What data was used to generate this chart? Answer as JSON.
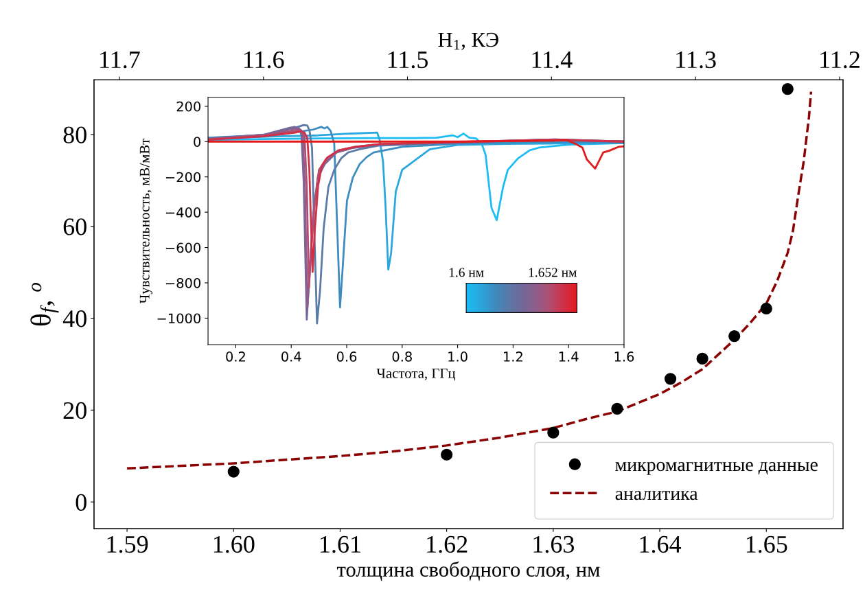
{
  "chart_data": [
    {
      "type": "scatter",
      "xlabel": "толщина свободного слоя, нм",
      "ylabel": "θ$_{f}$, $^{o}$",
      "x2label": "H$_{1}$, КЭ",
      "xlim": [
        1.5869,
        1.6572
      ],
      "xticks": [
        1.59,
        {
          "value": 1.6,
          "label": "1.60"
        },
        1.61,
        1.62,
        1.63,
        1.64,
        1.65
      ],
      "x2lim": [
        11.7176,
        11.1976
      ],
      "x2ticks": [
        11.7,
        11.6,
        11.5,
        11.4,
        11.3,
        11.2
      ],
      "ylim": [
        -5.8,
        91.9
      ],
      "yticks": [
        0,
        20,
        40,
        60,
        80
      ],
      "grid": false,
      "legend": "bottom right",
      "series": [
        {
          "name": "микромагнитные данные",
          "type": "scatter",
          "marker": "circle",
          "color": "#000000",
          "x": [
            1.6,
            1.62,
            1.63,
            1.636,
            1.641,
            1.644,
            1.647,
            1.65,
            1.652
          ],
          "values": [
            6.6,
            10.3,
            15.1,
            20.3,
            26.8,
            31.2,
            36.1,
            42.1,
            89.9
          ]
        },
        {
          "name": "аналитика",
          "type": "line",
          "line_style": "dashed",
          "color": "#8b0000",
          "x": [
            1.59,
            1.6,
            1.61,
            1.615,
            1.62,
            1.625,
            1.63,
            1.633,
            1.636,
            1.64,
            1.642,
            1.644,
            1.647,
            1.6485,
            1.65,
            1.651,
            1.652,
            1.6525,
            1.653,
            1.6535,
            1.654,
            1.6542
          ],
          "values": [
            7.3,
            8.4,
            10.0,
            11.0,
            12.3,
            14.0,
            16.1,
            18.0,
            19.7,
            23.5,
            26.0,
            28.9,
            35.3,
            39.0,
            43.2,
            48.0,
            54.2,
            59.0,
            66.8,
            74.0,
            83.7,
            89.3
          ]
        }
      ]
    },
    {
      "type": "line",
      "xlabel": "Частота, ГГц",
      "ylabel": "Чувствительность, мВ/мВт",
      "xlim": [
        0.1,
        1.6
      ],
      "xticks": [
        0.2,
        0.4,
        0.6,
        0.8,
        {
          "value": 1,
          "label": "1.0"
        },
        1.2,
        1.4,
        1.6
      ],
      "ylim": [
        -1150,
        250
      ],
      "yticks": [
        200,
        0,
        {
          "value": -200,
          "label": "−200"
        },
        {
          "value": -400,
          "label": "−400"
        },
        {
          "value": -600,
          "label": "−600"
        },
        {
          "value": -800,
          "label": "−800"
        },
        {
          "value": -1000,
          "label": "−1000"
        }
      ],
      "grid": false,
      "annotations": [
        "1.6 нм",
        "1.652 нм"
      ],
      "series": [
        {
          "color": "#1cbcf5",
          "x": [
            0.1,
            0.3,
            0.5,
            0.7,
            0.85,
            0.924,
            0.983,
            1.0,
            1.021,
            1.042,
            1.067,
            1.088,
            1.101,
            1.122,
            1.141,
            1.164,
            1.181,
            1.218,
            1.26,
            1.294,
            1.345,
            1.403,
            1.6
          ],
          "values": [
            9,
            14,
            18,
            20,
            20,
            22,
            35,
            25,
            45,
            22,
            18,
            -17,
            -75,
            -374,
            -445,
            -257,
            -160,
            -95,
            -49,
            -34,
            -26,
            -17,
            -8
          ]
        },
        {
          "color": "#2aa8de",
          "x": [
            0.1,
            0.328,
            0.496,
            0.597,
            0.71,
            0.719,
            0.731,
            0.74,
            0.75,
            0.76,
            0.777,
            0.8,
            0.9,
            1.0,
            1.176,
            1.43,
            1.6
          ],
          "values": [
            16,
            29,
            35,
            44,
            51,
            9,
            -114,
            -361,
            -725,
            -634,
            -283,
            -160,
            -43,
            -19,
            -13,
            -10,
            -8
          ]
        },
        {
          "color": "#3d8cc0",
          "x": [
            0.1,
            0.37,
            0.479,
            0.508,
            0.52,
            0.53,
            0.542,
            0.555,
            0.563,
            0.576,
            0.584,
            0.601,
            0.622,
            0.647,
            0.672,
            0.697,
            0.8,
            1.0,
            1.3,
            1.6
          ],
          "values": [
            22,
            42,
            68,
            83,
            75,
            83,
            61,
            -10,
            -361,
            -939,
            -751,
            -335,
            -205,
            -127,
            -88,
            -62,
            -30,
            -12,
            -2,
            -5
          ]
        },
        {
          "color": "#5a7aa8",
          "x": [
            0.1,
            0.328,
            0.412,
            0.445,
            0.458,
            0.466,
            0.475,
            0.483,
            0.493,
            0.504,
            0.517,
            0.534,
            0.555,
            0.58,
            0.605,
            0.647,
            0.714,
            1.0,
            1.3,
            1.6
          ],
          "values": [
            16,
            42,
            77,
            94,
            91,
            61,
            -36,
            -491,
            -1030,
            -842,
            -491,
            -257,
            -160,
            -95,
            -62,
            -43,
            -23,
            -6,
            10,
            0
          ]
        },
        {
          "color": "#72689a",
          "x": [
            0.1,
            0.3,
            0.395,
            0.412,
            0.429,
            0.437,
            0.445,
            0.456,
            0.466,
            0.479,
            0.496,
            0.521,
            0.563,
            0.622,
            0.714,
            1.0,
            1.35,
            1.6
          ],
          "values": [
            16,
            38,
            78,
            83,
            74,
            35,
            -231,
            -1008,
            -751,
            -426,
            -205,
            -127,
            -62,
            -36,
            -17,
            -5,
            12,
            0
          ]
        },
        {
          "color": "#8e5f8c",
          "x": [
            0.1,
            0.3,
            0.4,
            0.42,
            0.435,
            0.442,
            0.45,
            0.458,
            0.468,
            0.48,
            0.497,
            0.522,
            0.565,
            0.625,
            0.72,
            1.0,
            1.35,
            1.6
          ],
          "values": [
            14,
            36,
            68,
            72,
            66,
            30,
            -300,
            -945,
            -700,
            -400,
            -190,
            -120,
            -58,
            -34,
            -15,
            -3,
            12,
            0
          ]
        },
        {
          "color": "#b04f70",
          "x": [
            0.1,
            0.3,
            0.41,
            0.43,
            0.44,
            0.448,
            0.456,
            0.464,
            0.472,
            0.485,
            0.5,
            0.525,
            0.57,
            0.63,
            0.72,
            1.0,
            1.35,
            1.6
          ],
          "values": [
            12,
            34,
            60,
            65,
            58,
            25,
            -250,
            -829,
            -600,
            -350,
            -160,
            -100,
            -50,
            -30,
            -14,
            -2,
            10,
            0
          ]
        },
        {
          "color": "#d03048",
          "x": [
            0.1,
            0.3,
            0.41,
            0.435,
            0.448,
            0.458,
            0.465,
            0.477,
            0.485,
            0.497,
            0.51,
            0.53,
            0.57,
            0.63,
            0.72,
            1.0,
            1.35,
            1.6
          ],
          "values": [
            10,
            30,
            50,
            58,
            50,
            20,
            -150,
            -738,
            -500,
            -250,
            -140,
            -90,
            -50,
            -30,
            -14,
            -2,
            10,
            0
          ]
        },
        {
          "color": "#e31a1c",
          "x": [
            0.1,
            0.6,
            1.0,
            1.2,
            1.345,
            1.395,
            1.43,
            1.45,
            1.466,
            1.496,
            1.525,
            1.546,
            1.58,
            1.6
          ],
          "values": [
            0,
            0,
            0,
            3,
            5,
            9,
            -17,
            -34,
            -101,
            -153,
            -62,
            -52,
            -30,
            -27
          ]
        }
      ]
    }
  ]
}
